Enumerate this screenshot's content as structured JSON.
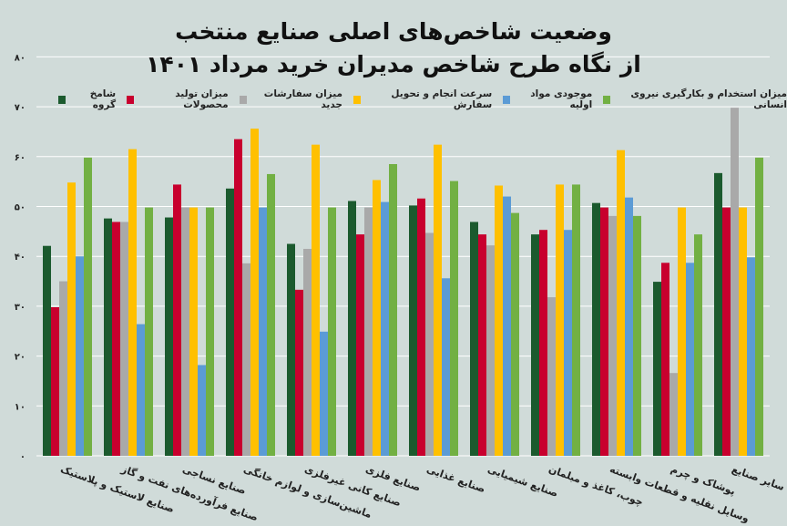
{
  "chart_data": {
    "type": "bar",
    "title": "وضعیت شاخص‌های اصلی صنایع منتخب",
    "subtitle": "از نگاه طرح شاخص مدیران خرید مرداد ۱۴۰۱",
    "xlabel": "",
    "ylabel": "",
    "ylim": [
      0,
      80
    ],
    "yticks": [
      "۰",
      "۱۰",
      "۲۰",
      "۳۰",
      "۴۰",
      "۵۰",
      "۶۰",
      "۷۰",
      "۸۰"
    ],
    "ytick_values": [
      0,
      10,
      20,
      30,
      40,
      50,
      60,
      70,
      80
    ],
    "grid": true,
    "legend_position": "top",
    "categories": [
      "صنایع لاستیک و پلاستیک",
      "صنایع فرآورده‌های نفت و گاز",
      "صنایع نساجی",
      "ماشین‌سازی و لوازم خانگی",
      "صنایع کانی غیرفلزی",
      "صنایع فلزی",
      "صنایع غذایی",
      "صنایع شیمیایی",
      "چوب، کاغذ و مبلمان",
      "وسایل نقلیه و قطعات وابسته",
      "پوشاک و چرم",
      "سایر صنایع"
    ],
    "series": [
      {
        "name": "شامخ گروه",
        "color": "#1b5a2e",
        "values": [
          42.1,
          47.6,
          47.8,
          53.6,
          42.5,
          51.1,
          50.2,
          46.9,
          44.4,
          50.7,
          34.9,
          56.7
        ]
      },
      {
        "name": "میزان تولید محصولات",
        "color": "#c8002e",
        "values": [
          29.8,
          46.9,
          54.4,
          63.5,
          33.3,
          44.4,
          51.6,
          44.4,
          45.3,
          49.8,
          38.7,
          49.8
        ]
      },
      {
        "name": "میزان سفارشات جدید",
        "color": "#a9a9a9",
        "values": [
          35.0,
          46.9,
          49.8,
          38.6,
          41.5,
          49.8,
          44.7,
          42.2,
          31.8,
          48.1,
          16.6,
          69.8
        ]
      },
      {
        "name": "سرعت انجام و تحویل سفارش",
        "color": "#ffc000",
        "values": [
          54.8,
          61.5,
          49.8,
          65.6,
          62.4,
          55.3,
          62.4,
          54.2,
          54.4,
          61.3,
          49.8,
          49.8
        ]
      },
      {
        "name": "موجودی مواد اولیه",
        "color": "#5b9bd5",
        "values": [
          40.0,
          26.4,
          18.2,
          49.8,
          24.9,
          50.9,
          35.6,
          52.0,
          45.3,
          51.8,
          38.7,
          39.8
        ]
      },
      {
        "name": "میزان استخدام و بکارگیری نیروی انسانی",
        "color": "#72b043",
        "values": [
          59.8,
          49.8,
          49.8,
          56.5,
          49.8,
          58.5,
          55.1,
          48.7,
          54.4,
          48.1,
          44.4,
          59.8
        ]
      }
    ]
  }
}
